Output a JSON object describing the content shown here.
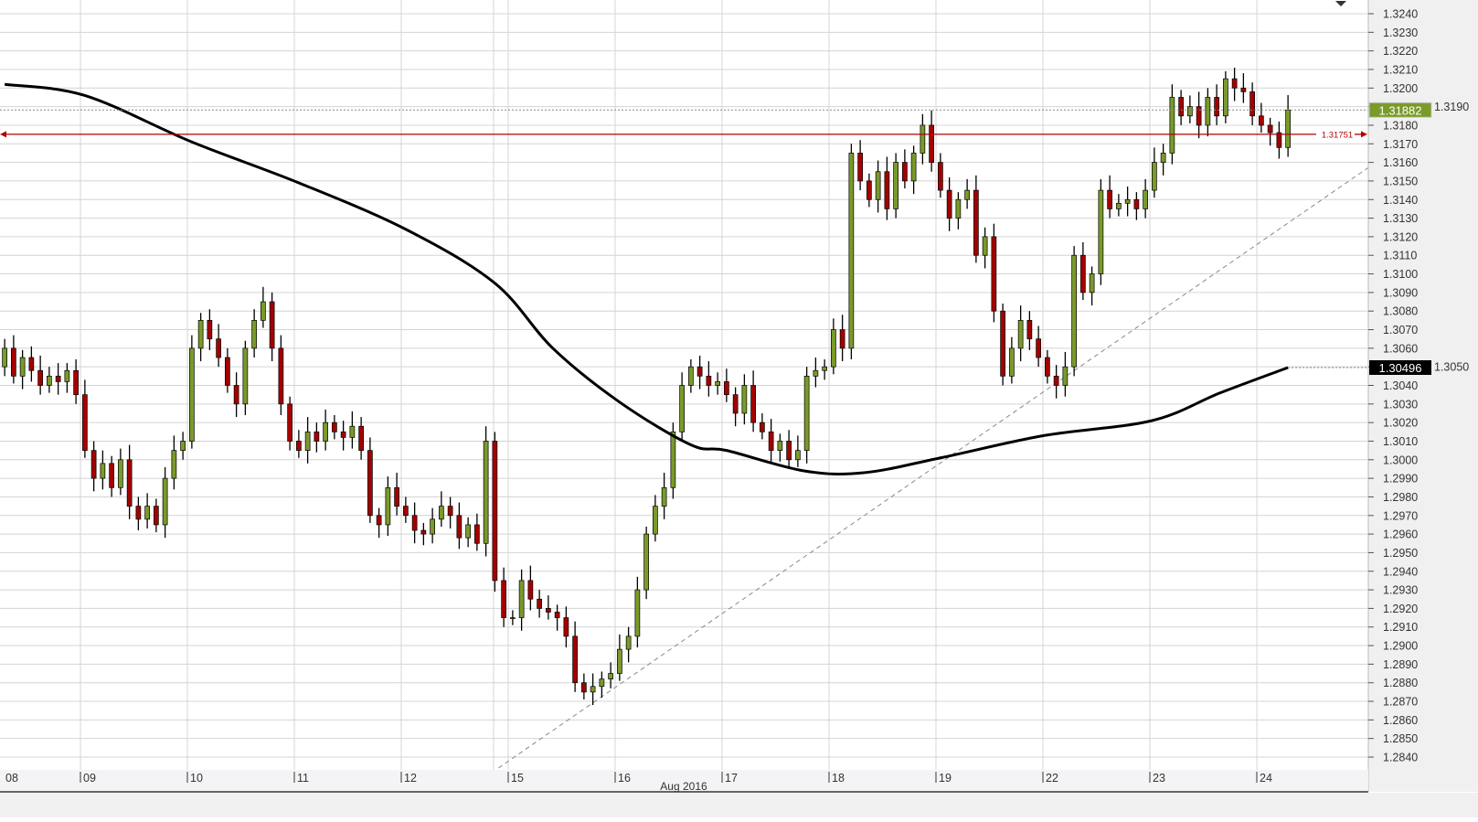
{
  "chart_data": {
    "type": "candlestick",
    "title": "",
    "x_month_label": "Aug 2016",
    "x_ticks": [
      "08",
      "09",
      "10",
      "11",
      "12",
      "15",
      "16",
      "17",
      "18",
      "19",
      "22",
      "23",
      "24"
    ],
    "ylim": [
      1.2835,
      1.3245
    ],
    "y_ticks": [
      "1.3240",
      "1.3230",
      "1.3220",
      "1.3210",
      "1.3200",
      "1.3190",
      "1.3180",
      "1.3170",
      "1.3160",
      "1.3150",
      "1.3140",
      "1.3130",
      "1.3120",
      "1.3110",
      "1.3100",
      "1.3090",
      "1.3080",
      "1.3070",
      "1.3060",
      "1.3050",
      "1.3040",
      "1.3030",
      "1.3020",
      "1.3010",
      "1.3000",
      "1.2990",
      "1.2980",
      "1.2970",
      "1.2960",
      "1.2950",
      "1.2940",
      "1.2930",
      "1.2920",
      "1.2910",
      "1.2900",
      "1.2890",
      "1.2880",
      "1.2870",
      "1.2860",
      "1.2850",
      "1.2840"
    ],
    "grid": true,
    "candles_per_day": 12,
    "first_open": 1.308,
    "closes_by_day": [
      {
        "day": "08",
        "closes": [
          1.3075,
          1.3065,
          1.305,
          1.306,
          1.3045,
          1.3055,
          1.3048,
          1.304,
          1.3045,
          1.3042,
          1.3048,
          1.3035
        ]
      },
      {
        "day": "09",
        "closes": [
          1.3005,
          1.299,
          1.2998,
          1.2985,
          1.3,
          1.2975,
          1.2968,
          1.2975,
          1.2965,
          1.299,
          1.3005,
          1.301
        ]
      },
      {
        "day": "10",
        "closes": [
          1.306,
          1.3075,
          1.3065,
          1.3055,
          1.304,
          1.303,
          1.306,
          1.3075,
          1.3085,
          1.306,
          1.303,
          1.301
        ]
      },
      {
        "day": "11",
        "closes": [
          1.3005,
          1.3015,
          1.301,
          1.302,
          1.3015,
          1.3012,
          1.3018,
          1.3005,
          1.297,
          1.2965,
          1.2985,
          1.2975
        ]
      },
      {
        "day": "12",
        "closes": [
          1.297,
          1.2962,
          1.296,
          1.2968,
          1.2975,
          1.297,
          1.2958,
          1.2965,
          1.2955,
          1.301,
          1.2935,
          1.2915
        ]
      },
      {
        "day": "15",
        "closes": [
          1.2915,
          1.2935,
          1.2925,
          1.292,
          1.2918,
          1.2915,
          1.2905,
          1.288,
          1.2875,
          1.2878,
          1.2882,
          1.2885
        ]
      },
      {
        "day": "16",
        "closes": [
          1.2898,
          1.2905,
          1.293,
          1.296,
          1.2975,
          1.2985,
          1.3015,
          1.304,
          1.305,
          1.3045,
          1.304,
          1.3042
        ]
      },
      {
        "day": "17",
        "closes": [
          1.3035,
          1.3025,
          1.304,
          1.302,
          1.3015,
          1.3005,
          1.301,
          1.3,
          1.3005,
          1.3045,
          1.3048,
          1.305
        ]
      },
      {
        "day": "18",
        "closes": [
          1.307,
          1.306,
          1.3165,
          1.315,
          1.314,
          1.3155,
          1.3135,
          1.316,
          1.315,
          1.3165,
          1.318,
          1.316
        ]
      },
      {
        "day": "19",
        "closes": [
          1.3145,
          1.313,
          1.314,
          1.3145,
          1.311,
          1.312,
          1.308,
          1.3045,
          1.306,
          1.3075,
          1.3065,
          1.3055
        ]
      },
      {
        "day": "22",
        "closes": [
          1.3045,
          1.304,
          1.305,
          1.311,
          1.309,
          1.31,
          1.3145,
          1.3135,
          1.3138,
          1.314,
          1.3135,
          1.3145
        ]
      },
      {
        "day": "23",
        "closes": [
          1.316,
          1.3165,
          1.3195,
          1.3185,
          1.319,
          1.318,
          1.3195,
          1.3185,
          1.3205,
          1.32,
          1.3198,
          1.3185
        ]
      },
      {
        "day": "24",
        "closes": [
          1.318,
          1.3176,
          1.3168,
          1.31882
        ]
      }
    ],
    "moving_average": [
      {
        "candle": 3,
        "value": 1.3202
      },
      {
        "candle": 12,
        "value": 1.3196
      },
      {
        "candle": 24,
        "value": 1.3171
      },
      {
        "candle": 36,
        "value": 1.3149
      },
      {
        "candle": 48,
        "value": 1.3124
      },
      {
        "candle": 58,
        "value": 1.3095
      },
      {
        "candle": 64.5,
        "value": 1.306
      },
      {
        "candle": 72,
        "value": 1.3031
      },
      {
        "candle": 80,
        "value": 1.3008
      },
      {
        "candle": 84,
        "value": 1.3005
      },
      {
        "candle": 92.7,
        "value": 1.2994
      },
      {
        "candle": 99.4,
        "value": 1.2993
      },
      {
        "candle": 108,
        "value": 1.3001
      },
      {
        "candle": 119.6,
        "value": 1.3013
      },
      {
        "candle": 131.7,
        "value": 1.3021
      },
      {
        "candle": 139.4,
        "value": 1.3036
      },
      {
        "candle": 147,
        "value": 1.30496
      }
    ],
    "trendline": [
      {
        "candle": 58.4,
        "value": 1.28341
      },
      {
        "candle": 156.5,
        "value": 1.31588
      }
    ],
    "last_price": {
      "label": "1.31882",
      "value": 1.31882,
      "color": "#7a9a2a"
    },
    "ma_last": {
      "label": "1.30496",
      "value": 1.30496,
      "color": "#000000"
    },
    "horizontal_level": {
      "label": "1.31751",
      "value": 1.31751,
      "color": "#b00000"
    },
    "colors": {
      "bull": "#7a9a2a",
      "bear": "#a50000",
      "ma": "#000000",
      "grid": "#d4d4d4",
      "axis_bg": "#f0f0f0"
    }
  }
}
